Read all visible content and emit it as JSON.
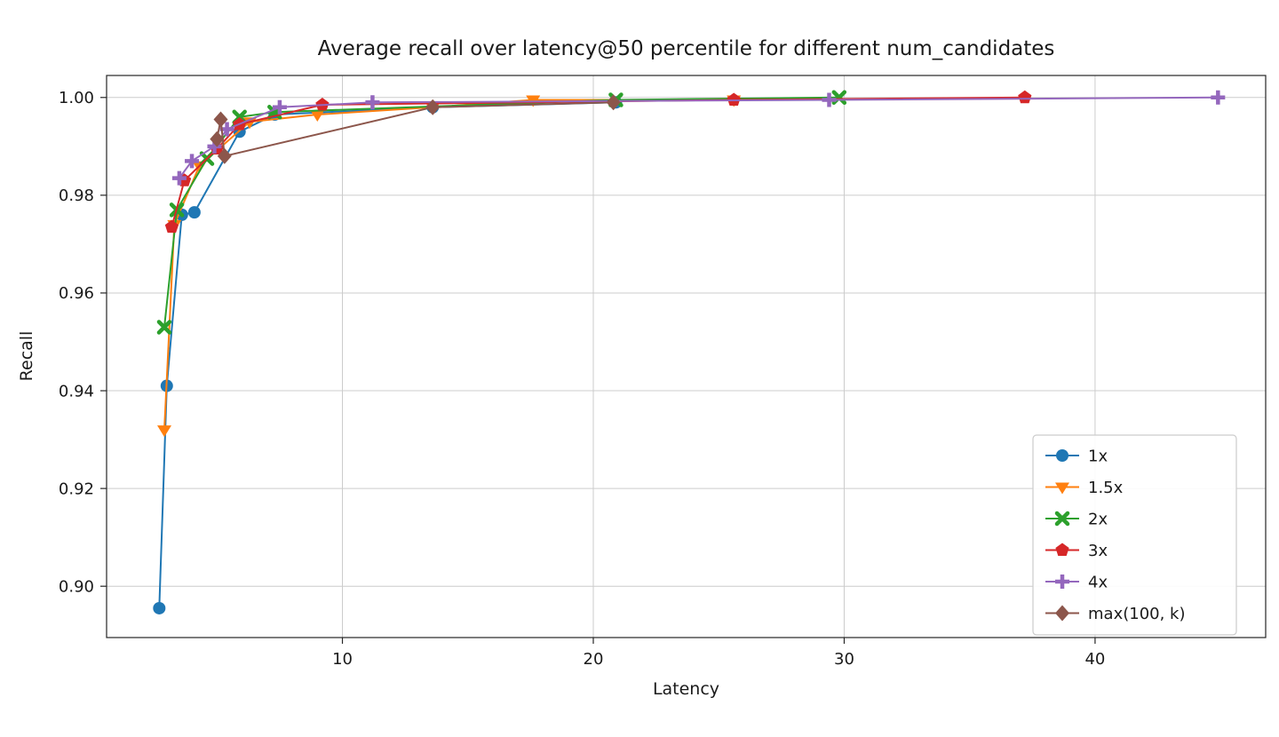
{
  "chart_data": {
    "type": "line",
    "title": "Average recall over latency@50 percentile for different num_candidates",
    "xlabel": "Latency",
    "ylabel": "Recall",
    "xlim": [
      0.6,
      46.8
    ],
    "ylim": [
      0.8895,
      1.0045
    ],
    "xticks": {
      "values": [
        10,
        20,
        30,
        40
      ],
      "labels": [
        "10",
        "20",
        "30",
        "40"
      ]
    },
    "yticks": {
      "values": [
        0.9,
        0.92,
        0.94,
        0.96,
        0.98,
        1.0
      ],
      "labels": [
        "0.90",
        "0.92",
        "0.94",
        "0.96",
        "0.98",
        "1.00"
      ]
    },
    "grid": true,
    "legend": {
      "position": "lower right",
      "entries": [
        "1x",
        "1.5x",
        "2x",
        "3x",
        "4x",
        "max(100, k)"
      ]
    },
    "series": [
      {
        "name": "1x",
        "color": "#1f77b4",
        "marker": "circle",
        "x": [
          2.7,
          3.0,
          3.6,
          4.1,
          5.9,
          7.3,
          13.6,
          20.9
        ],
        "y": [
          0.8955,
          0.941,
          0.976,
          0.9765,
          0.993,
          0.9965,
          0.998,
          0.999
        ]
      },
      {
        "name": "1.5x",
        "color": "#ff7f0e",
        "marker": "triangle-down",
        "x": [
          2.9,
          3.3,
          4.3,
          6.3,
          9.0,
          13.6,
          17.6,
          25.6
        ],
        "y": [
          0.932,
          0.974,
          0.986,
          0.995,
          0.9965,
          0.998,
          0.9995,
          0.9995
        ]
      },
      {
        "name": "2x",
        "color": "#2ca02c",
        "marker": "x",
        "x": [
          2.9,
          3.4,
          4.6,
          5.9,
          7.3,
          20.9,
          29.8
        ],
        "y": [
          0.953,
          0.977,
          0.9875,
          0.996,
          0.997,
          0.9995,
          1.0
        ]
      },
      {
        "name": "3x",
        "color": "#d62728",
        "marker": "pentagon",
        "x": [
          3.2,
          3.7,
          5.0,
          5.9,
          9.2,
          25.6,
          37.2
        ],
        "y": [
          0.9735,
          0.983,
          0.9895,
          0.9945,
          0.9985,
          0.9995,
          1.0
        ]
      },
      {
        "name": "4x",
        "color": "#9467bd",
        "marker": "plus",
        "x": [
          3.5,
          4.0,
          4.9,
          5.4,
          7.5,
          11.2,
          29.4,
          44.9
        ],
        "y": [
          0.9835,
          0.987,
          0.99,
          0.9935,
          0.998,
          0.999,
          0.9995,
          1.0
        ]
      },
      {
        "name": "max(100, k)",
        "color": "#8c564b",
        "marker": "diamond",
        "x": [
          5.0,
          5.15,
          5.3,
          13.6,
          20.8
        ],
        "y": [
          0.9915,
          0.9955,
          0.988,
          0.998,
          0.999
        ]
      }
    ],
    "style": {
      "grid_color": "#cccccc",
      "spine_color": "#262626",
      "text_color": "#1a1a1a",
      "legend_border": "#cccccc",
      "background": "#ffffff"
    }
  }
}
